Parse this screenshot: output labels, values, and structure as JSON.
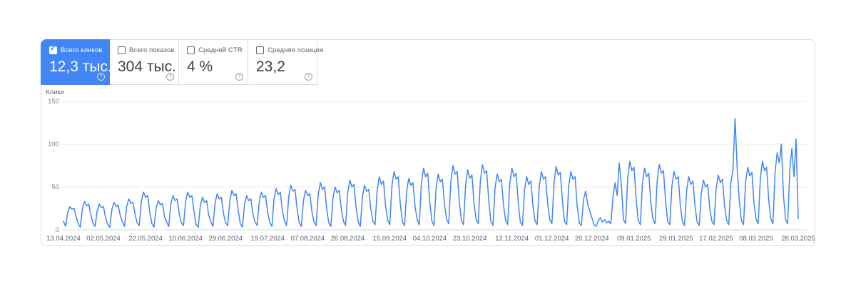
{
  "colors": {
    "selected_card_bg": "#4285f4",
    "line": "#4285f4",
    "grid": "#ececec",
    "axis_baseline": "#d5d7d9",
    "tick_text": "#80868b",
    "label_text": "#5f6368",
    "card_border": "#dadce0"
  },
  "icons": {
    "help_glyph": "?",
    "check_glyph": "✓"
  },
  "metric_cards": [
    {
      "id": "total-clicks",
      "label": "Всего кликов",
      "value": "12,3 тыс.",
      "selected": true,
      "checked": true
    },
    {
      "id": "total-impressions",
      "label": "Всего показов",
      "value": "304 тыс.",
      "selected": false,
      "checked": false
    },
    {
      "id": "average-ctr",
      "label": "Средний CTR",
      "value": "4 %",
      "selected": false,
      "checked": false
    },
    {
      "id": "average-position",
      "label": "Средняя позиция",
      "value": "23,2",
      "selected": false,
      "checked": false
    }
  ],
  "chart_data": {
    "type": "line",
    "title": "",
    "xlabel": "",
    "ylabel": "Клики",
    "ylim": [
      0,
      150
    ],
    "y_ticks": [
      0,
      50,
      100,
      150
    ],
    "grid": true,
    "legend": "none",
    "line_color": "#4285f4",
    "x_tick_labels": [
      "13.04.2024",
      "02.05.2024",
      "22.05.2024",
      "10.06.2024",
      "29.06.2024",
      "19.07.2024",
      "07.08.2024",
      "26.08.2024",
      "15.09.2024",
      "04.10.2024",
      "23.10.2024",
      "12.11.2024",
      "01.12.2024",
      "20.12.2024",
      "09.01.2025",
      "29.01.2025",
      "17.02.2025",
      "08.03.2025",
      "28.03.2025"
    ],
    "x_tick_day_index": [
      0,
      19,
      39,
      58,
      77,
      97,
      116,
      135,
      155,
      174,
      193,
      213,
      232,
      251,
      271,
      291,
      310,
      329,
      349
    ],
    "values": [
      10,
      4,
      20,
      27,
      24,
      25,
      15,
      7,
      3,
      25,
      33,
      28,
      30,
      17,
      8,
      4,
      22,
      30,
      26,
      27,
      14,
      6,
      3,
      24,
      32,
      27,
      29,
      16,
      9,
      4,
      27,
      36,
      31,
      32,
      18,
      8,
      5,
      33,
      44,
      38,
      40,
      20,
      7,
      3,
      26,
      34,
      29,
      31,
      15,
      9,
      4,
      30,
      40,
      34,
      36,
      18,
      8,
      5,
      33,
      44,
      38,
      40,
      21,
      6,
      3,
      28,
      38,
      32,
      34,
      17,
      9,
      4,
      31,
      42,
      36,
      38,
      19,
      8,
      5,
      34,
      46,
      40,
      42,
      22,
      7,
      3,
      30,
      40,
      34,
      36,
      18,
      9,
      5,
      33,
      44,
      38,
      40,
      20,
      8,
      4,
      36,
      48,
      41,
      44,
      22,
      10,
      5,
      39,
      52,
      45,
      47,
      24,
      8,
      4,
      34,
      46,
      40,
      42,
      21,
      9,
      5,
      41,
      55,
      47,
      50,
      25,
      8,
      4,
      37,
      50,
      43,
      46,
      23,
      10,
      5,
      43,
      58,
      50,
      53,
      26,
      9,
      4,
      39,
      52,
      45,
      47,
      24,
      10,
      6,
      46,
      62,
      53,
      57,
      28,
      11,
      6,
      51,
      68,
      59,
      62,
      30,
      9,
      5,
      45,
      60,
      52,
      55,
      27,
      12,
      6,
      54,
      72,
      62,
      66,
      32,
      10,
      5,
      49,
      65,
      56,
      59,
      29,
      12,
      7,
      56,
      75,
      65,
      68,
      33,
      11,
      6,
      52,
      70,
      60,
      64,
      31,
      12,
      7,
      57,
      76,
      66,
      69,
      34,
      10,
      5,
      49,
      65,
      56,
      59,
      29,
      11,
      6,
      54,
      72,
      62,
      66,
      32,
      9,
      5,
      46,
      62,
      53,
      57,
      28,
      10,
      6,
      51,
      68,
      59,
      62,
      30,
      12,
      7,
      55,
      74,
      64,
      67,
      33,
      10,
      6,
      51,
      68,
      59,
      62,
      28,
      8,
      5,
      35,
      45,
      30,
      22,
      14,
      6,
      4,
      10,
      14,
      9,
      12,
      8,
      10,
      7,
      38,
      55,
      40,
      78,
      52,
      12,
      7,
      60,
      80,
      69,
      73,
      35,
      11,
      6,
      54,
      72,
      62,
      66,
      31,
      12,
      7,
      57,
      76,
      66,
      69,
      33,
      10,
      6,
      51,
      68,
      59,
      62,
      29,
      9,
      5,
      46,
      62,
      53,
      57,
      27,
      9,
      5,
      43,
      58,
      50,
      53,
      25,
      10,
      6,
      48,
      64,
      55,
      59,
      28,
      11,
      6,
      55,
      70,
      130,
      72,
      34,
      11,
      6,
      55,
      73,
      63,
      67,
      31,
      12,
      7,
      60,
      80,
      69,
      73,
      34,
      13,
      7,
      67,
      90,
      78,
      100,
      40,
      12,
      7,
      70,
      95,
      62,
      106,
      13
    ]
  }
}
